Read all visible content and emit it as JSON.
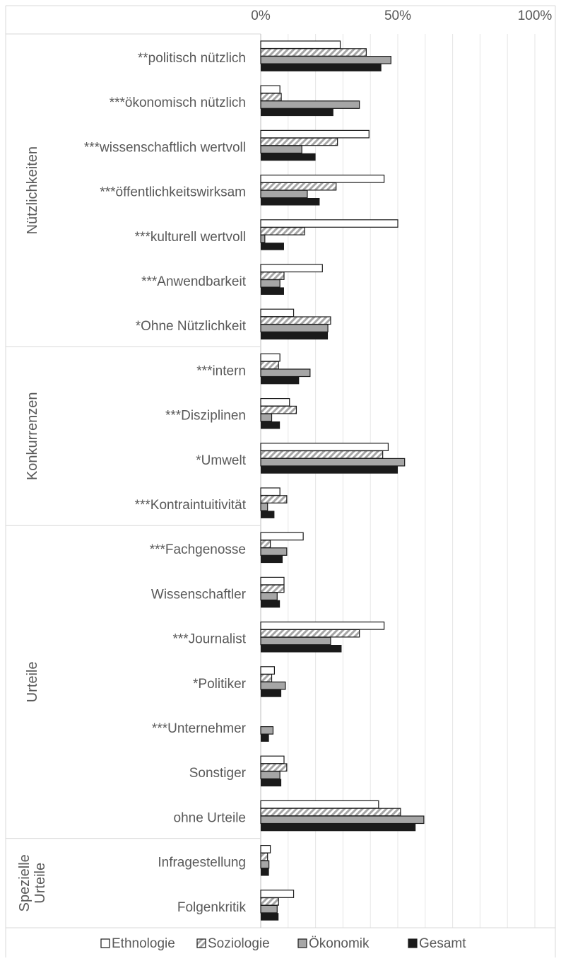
{
  "chart_data": {
    "type": "bar",
    "orientation": "horizontal",
    "xlim": [
      0,
      100
    ],
    "x_ticks": [
      "0%",
      "50%",
      "100%"
    ],
    "grid": true,
    "legend_position": "bottom",
    "series": [
      {
        "name": "Ethnologie",
        "fill": "#ffffff",
        "pattern": "none"
      },
      {
        "name": "Soziologie",
        "fill": "#d9d9d9",
        "pattern": "diagonal-stripes"
      },
      {
        "name": "Ökonomik",
        "fill": "#a6a6a6",
        "pattern": "none"
      },
      {
        "name": "Gesamt",
        "fill": "#1a1a1a",
        "pattern": "none"
      }
    ],
    "groups": [
      {
        "label": "Nützlichkeiten",
        "categories": [
          {
            "label": "**politisch nützlich",
            "values": [
              29,
              38.5,
              47.5,
              44
            ]
          },
          {
            "label": "***ökonomisch nützlich",
            "values": [
              7,
              7.5,
              36,
              26.5
            ]
          },
          {
            "label": "***wissenschaftlich wertvoll",
            "values": [
              39.5,
              28,
              15,
              20
            ]
          },
          {
            "label": "***öffentlichkeitswirksam",
            "values": [
              45,
              27.5,
              17,
              21.5
            ]
          },
          {
            "label": "***kulturell wertvoll",
            "values": [
              50,
              16,
              1.5,
              8.5
            ]
          },
          {
            "label": "***Anwendbarkeit",
            "values": [
              22.5,
              8.5,
              7,
              8.5
            ]
          },
          {
            "label": "*Ohne Nützlichkeit",
            "values": [
              12,
              25.5,
              24.5,
              24.5
            ]
          }
        ]
      },
      {
        "label": "Konkurrenzen",
        "categories": [
          {
            "label": "***intern",
            "values": [
              7,
              6.5,
              18,
              14
            ]
          },
          {
            "label": "***Disziplinen",
            "values": [
              10.5,
              13,
              4,
              7
            ]
          },
          {
            "label": "*Umwelt",
            "values": [
              46.5,
              44.5,
              52.5,
              50
            ]
          },
          {
            "label": "***Kontraintuitivität",
            "values": [
              7,
              9.5,
              2.5,
              5
            ]
          }
        ]
      },
      {
        "label": "Urteile",
        "categories": [
          {
            "label": "***Fachgenosse",
            "values": [
              15.5,
              3.5,
              9.5,
              8
            ]
          },
          {
            "label": "Wissenschaftler",
            "values": [
              8.5,
              8.5,
              6,
              7
            ]
          },
          {
            "label": "***Journalist",
            "values": [
              45,
              36,
              25.5,
              29.5
            ]
          },
          {
            "label": "*Politiker",
            "values": [
              5,
              4,
              9,
              7.5
            ]
          },
          {
            "label": "***Unternehmer",
            "values": [
              0,
              0,
              4.5,
              3
            ]
          },
          {
            "label": "Sonstiger",
            "values": [
              8.5,
              9.5,
              7,
              7.5
            ]
          },
          {
            "label": "ohne Urteile",
            "values": [
              43,
              51,
              59.5,
              56.5
            ]
          }
        ]
      },
      {
        "label": "Spezielle Urteile",
        "categories": [
          {
            "label": "Infragestellung",
            "values": [
              3.5,
              2.5,
              3,
              3
            ]
          },
          {
            "label": "Folgenkritik",
            "values": [
              12,
              6.5,
              6,
              6.5
            ]
          }
        ]
      }
    ]
  }
}
